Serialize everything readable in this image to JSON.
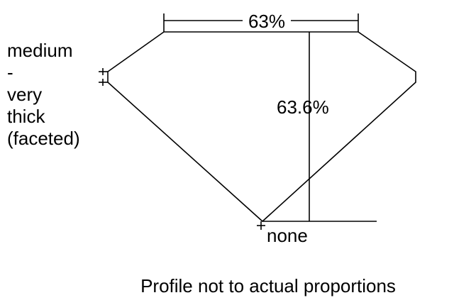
{
  "diagram": {
    "table_percent": "63%",
    "depth_percent": "63.6%",
    "girdle_label": [
      "medium",
      "-",
      "very",
      "thick",
      "(faceted)"
    ],
    "culet_label": "none",
    "footnote": "Profile not to actual proportions"
  }
}
